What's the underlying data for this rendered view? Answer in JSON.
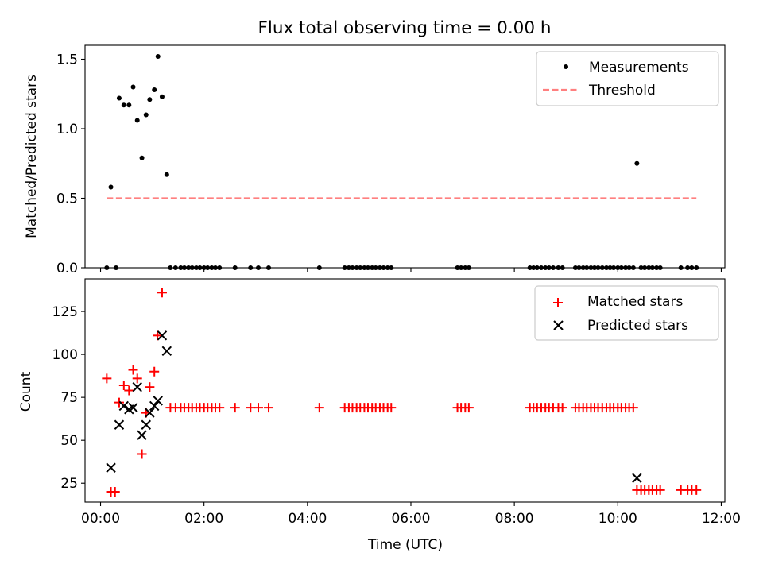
{
  "chart_data": [
    {
      "type": "scatter",
      "title": "Flux total observing time = 0.00 h",
      "xlabel": "",
      "ylabel": "Matched/Predicted stars",
      "xlim": [
        -0.3,
        12.07
      ],
      "ylim": [
        0,
        1.6
      ],
      "xticks": [
        "00:00",
        "02:00",
        "04:00",
        "06:00",
        "08:00",
        "10:00",
        "12:00"
      ],
      "xtick_values": [
        0,
        2,
        4,
        6,
        8,
        10,
        12
      ],
      "yticks": [
        "0.0",
        "0.5",
        "1.0",
        "1.5"
      ],
      "ytick_values": [
        0,
        0.5,
        1.0,
        1.5
      ],
      "legend_position": "top-right",
      "grid": false,
      "series": [
        {
          "name": "Measurements",
          "marker": "dot",
          "color": "#000000",
          "x": [
            0.12,
            0.2,
            0.3,
            0.36,
            0.45,
            0.55,
            0.63,
            0.71,
            0.8,
            0.88,
            0.95,
            1.04,
            1.11,
            1.19,
            1.28,
            1.35,
            1.45,
            1.55,
            1.62,
            1.7,
            1.77,
            1.85,
            1.92,
            2.0,
            2.07,
            2.15,
            2.22,
            2.3,
            2.6,
            2.9,
            3.05,
            3.25,
            4.23,
            4.72,
            4.8,
            4.87,
            4.95,
            5.02,
            5.1,
            5.17,
            5.25,
            5.32,
            5.4,
            5.47,
            5.55,
            5.62,
            6.9,
            6.97,
            7.05,
            7.12,
            8.3,
            8.37,
            8.44,
            8.52,
            8.6,
            8.67,
            8.75,
            8.85,
            8.93,
            9.18,
            9.25,
            9.33,
            9.4,
            9.48,
            9.55,
            9.62,
            9.7,
            9.78,
            9.85,
            9.92,
            10.0,
            10.07,
            10.15,
            10.22,
            10.3,
            10.37,
            10.45,
            10.52,
            10.6,
            10.67,
            10.75,
            10.82,
            11.22,
            11.35,
            11.43,
            11.52
          ],
          "y": [
            0,
            0.58,
            0,
            1.22,
            1.17,
            1.17,
            1.3,
            1.06,
            0.79,
            1.1,
            1.21,
            1.28,
            1.52,
            1.23,
            0.67,
            0,
            0,
            0,
            0,
            0,
            0,
            0,
            0,
            0,
            0,
            0,
            0,
            0,
            0,
            0,
            0,
            0,
            0,
            0,
            0,
            0,
            0,
            0,
            0,
            0,
            0,
            0,
            0,
            0,
            0,
            0,
            0,
            0,
            0,
            0,
            0,
            0,
            0,
            0,
            0,
            0,
            0,
            0,
            0,
            0,
            0,
            0,
            0,
            0,
            0,
            0,
            0,
            0,
            0,
            0,
            0,
            0,
            0,
            0,
            0,
            0.75,
            0,
            0,
            0,
            0,
            0,
            0,
            0,
            0,
            0,
            0
          ]
        },
        {
          "name": "Threshold",
          "marker": "dashed-line",
          "color": "#ff7f7f",
          "x": [
            0.12,
            11.52
          ],
          "y": [
            0.5,
            0.5
          ]
        }
      ]
    },
    {
      "type": "scatter",
      "title": "",
      "xlabel": "Time (UTC)",
      "ylabel": "Count",
      "xlim": [
        -0.3,
        12.07
      ],
      "ylim": [
        14,
        144
      ],
      "xticks": [
        "00:00",
        "02:00",
        "04:00",
        "06:00",
        "08:00",
        "10:00",
        "12:00"
      ],
      "xtick_values": [
        0,
        2,
        4,
        6,
        8,
        10,
        12
      ],
      "yticks": [
        "25",
        "50",
        "75",
        "100",
        "125"
      ],
      "ytick_values": [
        25,
        50,
        75,
        100,
        125
      ],
      "legend_position": "top-right",
      "grid": false,
      "series": [
        {
          "name": "Matched stars",
          "marker": "plus",
          "color": "#ff0000",
          "x": [
            0.12,
            0.2,
            0.28,
            0.36,
            0.45,
            0.55,
            0.63,
            0.71,
            0.8,
            0.88,
            0.95,
            1.04,
            1.1,
            1.19,
            1.35,
            1.45,
            1.55,
            1.62,
            1.7,
            1.77,
            1.85,
            1.92,
            2.0,
            2.07,
            2.15,
            2.22,
            2.3,
            2.6,
            2.9,
            3.05,
            3.25,
            4.23,
            4.72,
            4.8,
            4.87,
            4.95,
            5.02,
            5.1,
            5.17,
            5.25,
            5.32,
            5.4,
            5.47,
            5.55,
            5.62,
            6.9,
            6.97,
            7.05,
            7.12,
            8.3,
            8.37,
            8.44,
            8.52,
            8.6,
            8.67,
            8.75,
            8.85,
            8.93,
            9.18,
            9.25,
            9.33,
            9.4,
            9.48,
            9.55,
            9.62,
            9.7,
            9.78,
            9.85,
            9.92,
            10.0,
            10.07,
            10.15,
            10.22,
            10.3,
            10.37,
            10.45,
            10.52,
            10.6,
            10.67,
            10.75,
            10.82,
            11.22,
            11.35,
            11.43,
            11.52
          ],
          "y": [
            86,
            20,
            20,
            72,
            82,
            79,
            91,
            86,
            42,
            66,
            81,
            90,
            111,
            136,
            69,
            69,
            69,
            69,
            69,
            69,
            69,
            69,
            69,
            69,
            69,
            69,
            69,
            69,
            69,
            69,
            69,
            69,
            69,
            69,
            69,
            69,
            69,
            69,
            69,
            69,
            69,
            69,
            69,
            69,
            69,
            69,
            69,
            69,
            69,
            69,
            69,
            69,
            69,
            69,
            69,
            69,
            69,
            69,
            69,
            69,
            69,
            69,
            69,
            69,
            69,
            69,
            69,
            69,
            69,
            69,
            69,
            69,
            69,
            69,
            21,
            21,
            21,
            21,
            21,
            21,
            21,
            21,
            21,
            21,
            21
          ]
        },
        {
          "name": "Predicted stars",
          "marker": "x",
          "color": "#000000",
          "x": [
            0.2,
            0.36,
            0.45,
            0.55,
            0.63,
            0.71,
            0.8,
            0.88,
            0.95,
            1.04,
            1.11,
            1.19,
            1.28,
            10.37
          ],
          "y": [
            34,
            59,
            70,
            68,
            69,
            81,
            53,
            59,
            66,
            70,
            73,
            111,
            102,
            28
          ]
        }
      ]
    }
  ]
}
